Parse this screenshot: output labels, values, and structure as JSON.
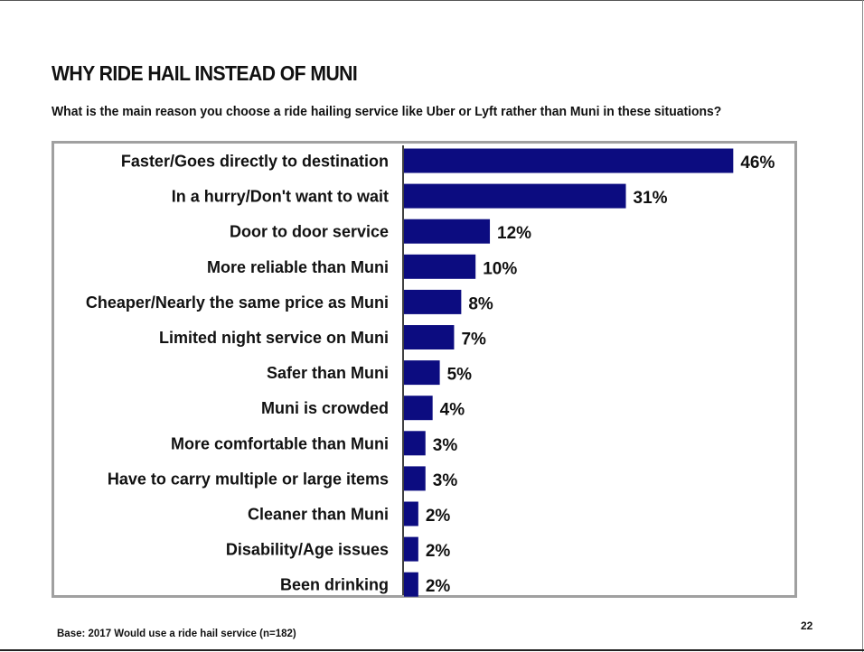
{
  "slide": {
    "title": "WHY RIDE HAIL INSTEAD OF MUNI",
    "subtitle": "What is the main reason you choose a ride hailing service like Uber or Lyft rather than Muni in these situations?",
    "footnote": "Base: 2017 Would use a ride hail service (n=182)",
    "page_number": "22"
  },
  "colors": {
    "bar": "#0c0c80",
    "frame": "#a0a0a0",
    "axis": "#000000"
  },
  "chart_data": {
    "type": "bar",
    "orientation": "horizontal",
    "categories": [
      "Faster/Goes directly to destination",
      "In a hurry/Don't want to wait",
      "Door to door service",
      "More reliable than Muni",
      "Cheaper/Nearly the same price as Muni",
      "Limited night service on Muni",
      "Safer than Muni",
      "Muni is crowded",
      "More comfortable than Muni",
      "Have to carry multiple or large items",
      "Cleaner than Muni",
      "Disability/Age issues",
      "Been drinking"
    ],
    "values": [
      46,
      31,
      12,
      10,
      8,
      7,
      5,
      4,
      3,
      3,
      2,
      2,
      2
    ],
    "value_labels": [
      "46%",
      "31%",
      "12%",
      "10%",
      "8%",
      "7%",
      "5%",
      "4%",
      "3%",
      "3%",
      "2%",
      "2%",
      "2%"
    ],
    "xlim": [
      0,
      50
    ],
    "grid": false,
    "legend": "none"
  }
}
